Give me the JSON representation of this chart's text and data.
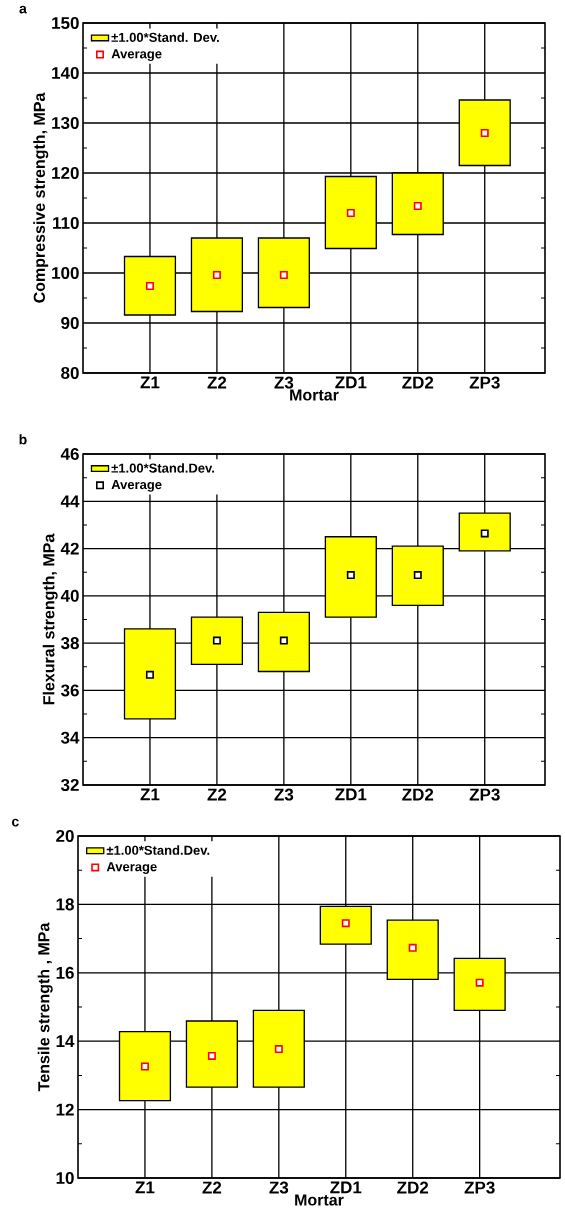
{
  "chart_data": [
    {
      "type": "bar",
      "title": "a",
      "xlabel": "Mortar",
      "ylabel": "Compressive strength, MPa",
      "categories": [
        "Z1",
        "Z2",
        "Z3",
        "ZD1",
        "ZD2",
        "ZP3"
      ],
      "series": [
        {
          "name": "±1.00*Stand. Dev.",
          "color": "#ffff00",
          "base": [
            91.6,
            92.3,
            93.1,
            104.9,
            107.7,
            121.5
          ],
          "values": [
            11.7,
            14.7,
            13.9,
            14.4,
            12.3,
            13.1
          ]
        },
        {
          "name": "Average",
          "type": "scatter",
          "color": "#ff0000",
          "values": [
            97.4,
            99.6,
            99.6,
            112.0,
            113.4,
            128.0
          ]
        }
      ],
      "ylim": [
        80,
        150
      ],
      "yticks": [
        80,
        90,
        100,
        110,
        120,
        130,
        140,
        150
      ],
      "grid": true,
      "legend": "top left",
      "marker": "square"
    },
    {
      "type": "bar",
      "title": "b",
      "ylabel": "Flexural strength, MPa",
      "categories": [
        "Z1",
        "Z2",
        "Z3",
        "ZD1",
        "ZD2",
        "ZP3"
      ],
      "series": [
        {
          "name": "±1.00*Stand.Dev.",
          "color": "#ffff00",
          "base": [
            34.8,
            37.1,
            36.8,
            39.1,
            39.6,
            41.9
          ],
          "values": [
            3.8,
            2.0,
            2.5,
            3.4,
            2.5,
            1.6
          ]
        },
        {
          "name": "Average",
          "type": "scatter",
          "color": "#000000",
          "values": [
            36.66,
            38.11,
            38.11,
            40.88,
            40.88,
            42.64
          ]
        }
      ],
      "ylim": [
        32,
        46
      ],
      "yticks": [
        32,
        34,
        36,
        38,
        40,
        42,
        44,
        46
      ],
      "grid": true,
      "legend": "top left",
      "marker": "square"
    },
    {
      "type": "bar",
      "title": "c",
      "xlabel": "Mortar",
      "ylabel": "Tensile strength , MPa",
      "categories": [
        "Z1",
        "Z2",
        "Z3",
        "ZD1",
        "ZD2",
        "ZP3"
      ],
      "series": [
        {
          "name": "±1.00*Stand.Dev.",
          "color": "#ffff00",
          "base": [
            12.26,
            12.66,
            12.66,
            16.84,
            15.81,
            14.9
          ],
          "values": [
            2.02,
            1.93,
            2.24,
            1.1,
            1.73,
            1.52
          ]
        },
        {
          "name": "Average",
          "type": "scatter",
          "color": "#ff0000",
          "values": [
            13.26,
            13.57,
            13.77,
            17.45,
            16.73,
            15.71
          ]
        }
      ],
      "ylim": [
        10,
        20
      ],
      "yticks": [
        10,
        12,
        14,
        16,
        18,
        20
      ],
      "grid": true,
      "legend": "top left",
      "marker": "square"
    }
  ]
}
